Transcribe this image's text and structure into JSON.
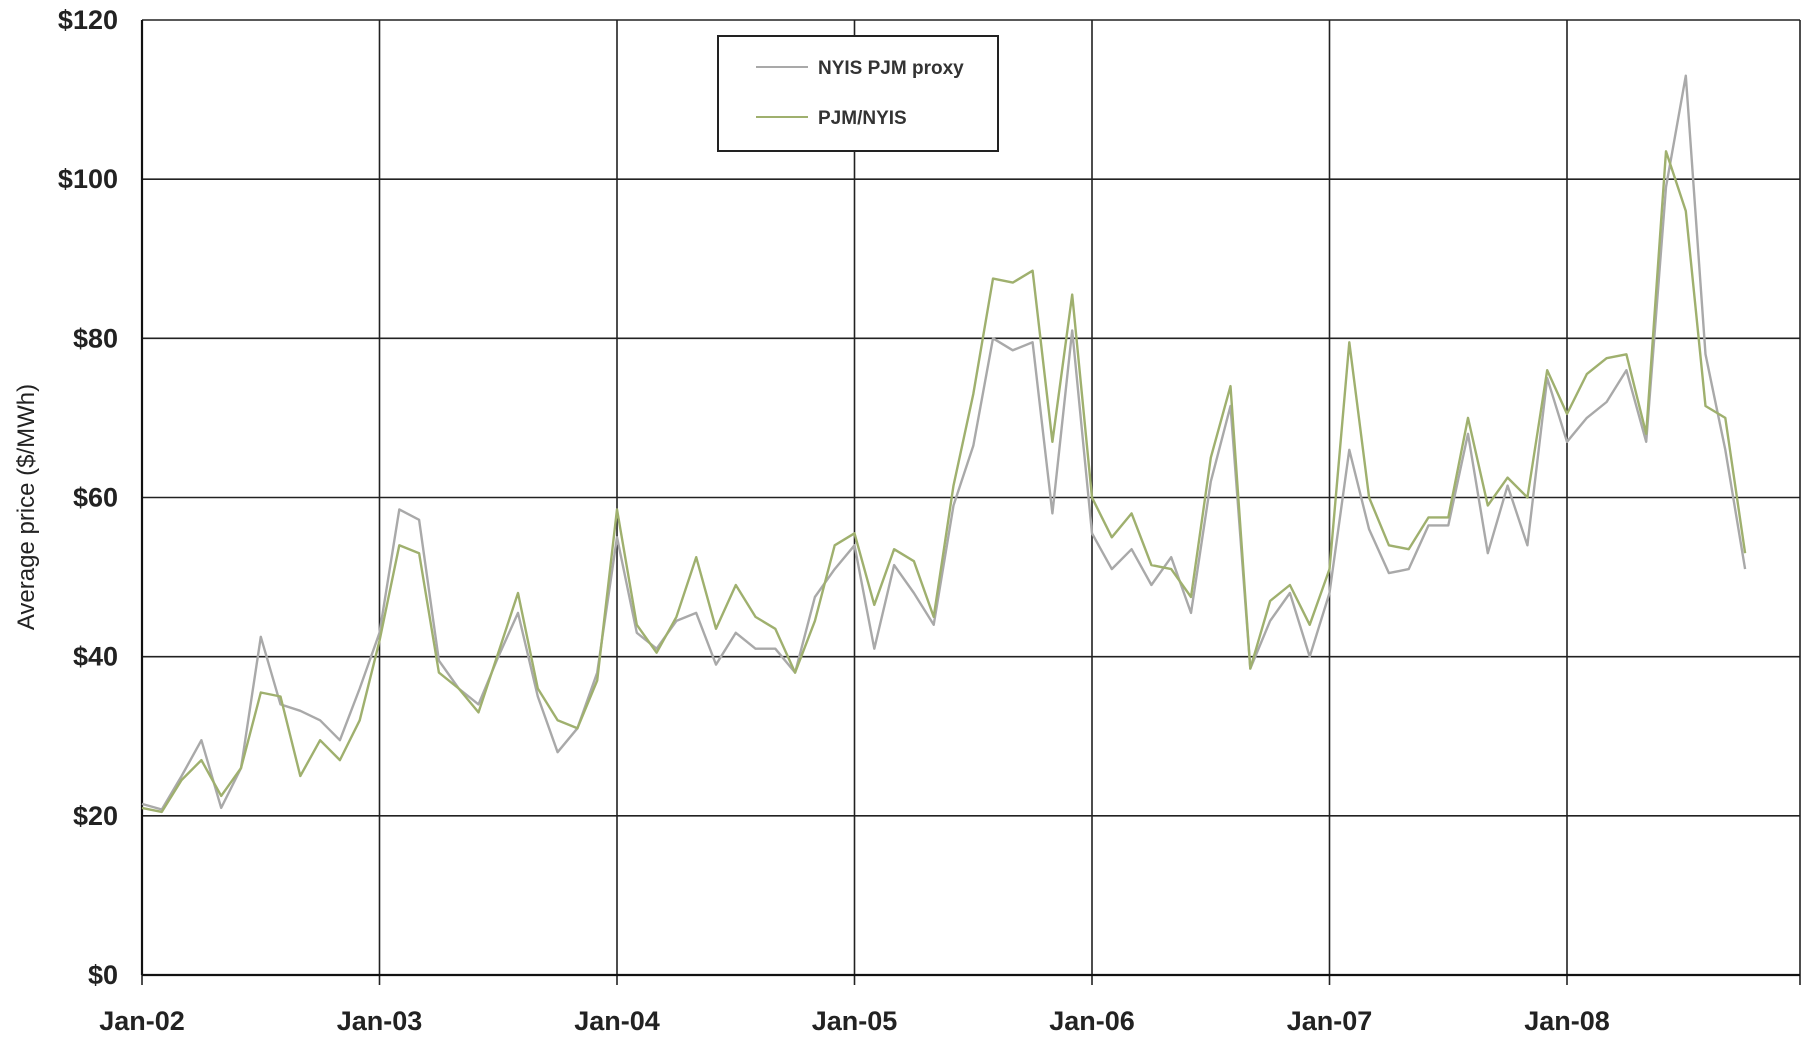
{
  "chart_data": {
    "type": "line",
    "title": "",
    "xlabel": "",
    "ylabel": "Average price ($/MWh)",
    "ylim": [
      0,
      120
    ],
    "y_ticks": [
      {
        "value": 0,
        "label": "$0"
      },
      {
        "value": 20,
        "label": "$20"
      },
      {
        "value": 40,
        "label": "$40"
      },
      {
        "value": 60,
        "label": "$60"
      },
      {
        "value": 80,
        "label": "$80"
      },
      {
        "value": 100,
        "label": "$100"
      },
      {
        "value": 120,
        "label": "$120"
      }
    ],
    "x_ticks": [
      "Jan-02",
      "Jan-03",
      "Jan-04",
      "Jan-05",
      "Jan-06",
      "Jan-07",
      "Jan-08"
    ],
    "x_start": "Jan-02",
    "x_unit": "month",
    "grid": true,
    "legend_position": "top-center",
    "series": [
      {
        "name": "NYIS PJM proxy",
        "color": "#a9a9a9",
        "values": [
          21.5,
          20.8,
          25,
          29.5,
          21,
          26,
          42.5,
          34,
          33.2,
          32,
          29.5,
          36,
          43,
          58.5,
          57.2,
          39.5,
          36,
          34,
          40,
          45.5,
          35,
          28,
          31,
          38,
          55,
          43,
          41,
          44.5,
          45.5,
          39,
          43,
          41,
          41,
          38,
          47.5,
          51,
          54,
          41,
          51.5,
          48,
          44,
          59,
          66.5,
          80,
          78.5,
          79.5,
          58,
          81,
          55.5,
          51,
          53.5,
          49,
          52.5,
          45.5,
          62,
          71.5,
          38.5,
          44.5,
          48,
          40,
          48,
          66,
          56,
          50.5,
          51,
          56.5,
          56.5,
          68,
          53,
          61.5,
          54,
          75,
          67,
          70,
          72,
          76,
          67,
          99,
          113,
          78,
          66,
          51
        ]
      },
      {
        "name": "PJM/NYIS",
        "color": "#9fb06e",
        "values": [
          21,
          20.5,
          24.5,
          27,
          22.5,
          26,
          35.5,
          35,
          25,
          29.5,
          27,
          32,
          42,
          54,
          53,
          38,
          36,
          33,
          40.5,
          48,
          36,
          32,
          31,
          37,
          58.5,
          44,
          40.5,
          45,
          52.5,
          43.5,
          49,
          45,
          43.5,
          38,
          44.5,
          54,
          55.5,
          46.5,
          53.5,
          52,
          45,
          61.5,
          73,
          87.5,
          87,
          88.5,
          67,
          85.5,
          60,
          55,
          58,
          51.5,
          51,
          47.5,
          65,
          74,
          38.5,
          47,
          49,
          44,
          51,
          79.5,
          60,
          54,
          53.5,
          57.5,
          57.5,
          70,
          59,
          62.5,
          60,
          76,
          70.5,
          75.5,
          77.5,
          78,
          68,
          103.5,
          96,
          71.5,
          70,
          53
        ]
      }
    ]
  }
}
